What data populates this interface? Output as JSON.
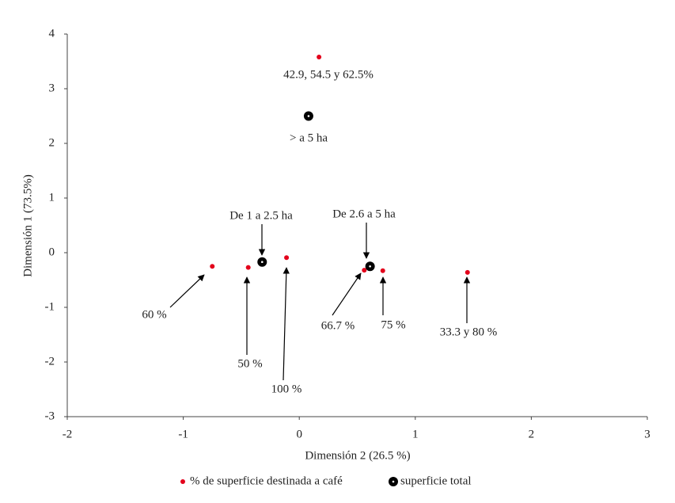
{
  "chart_data": {
    "type": "scatter",
    "x_label": "Dimensión 2 (26.5 %)",
    "y_label": "Dimensión 1 (73.5%)",
    "xlim": [
      -2,
      3
    ],
    "xticks": [
      -2,
      -1,
      0,
      1,
      2,
      3
    ],
    "ylim": [
      -3,
      4
    ],
    "yticks": [
      -3,
      -2,
      -1,
      0,
      1,
      2,
      3,
      4
    ],
    "grid": false,
    "legend": "bottom",
    "series": [
      {
        "name": "% de superficie destinada a café",
        "color": "#e3001b",
        "marker": "dot",
        "x": [
          0.17,
          -0.75,
          -0.44,
          -0.11,
          0.56,
          0.72,
          1.45
        ],
        "values": [
          3.58,
          -0.25,
          -0.27,
          -0.09,
          -0.32,
          -0.33,
          -0.36
        ]
      },
      {
        "name": "superficie total",
        "color": "#000000",
        "marker": "ring",
        "x": [
          0.08,
          -0.32,
          0.61
        ],
        "values": [
          2.5,
          -0.17,
          -0.25
        ]
      }
    ],
    "annotations": [
      "42.9, 54.5 y 62.5%",
      "> a 5 ha",
      "De 1 a 2.5 ha",
      "De 2.6 a 5 ha",
      "60 %",
      "50 %",
      "100 %",
      "66.7 %",
      "75 %",
      "33.3 y 80 %"
    ]
  }
}
